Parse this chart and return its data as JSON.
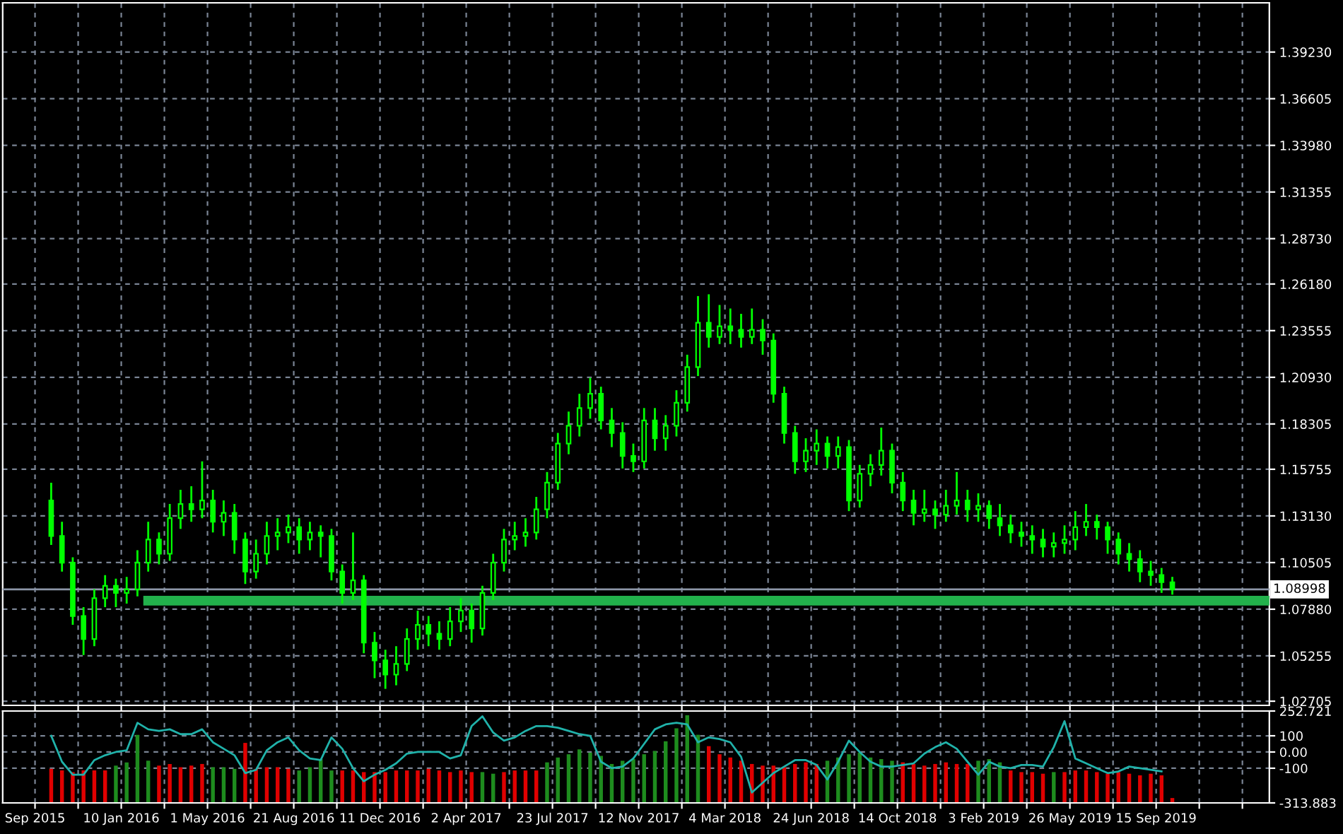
{
  "chart_data": [
    {
      "type": "candlestick",
      "color": "#00ff00",
      "grid": true,
      "tick_labels": "y",
      "xlim": [
        "2015-08-09",
        "2020-02-09"
      ],
      "ylim": [
        1.0247,
        1.42
      ],
      "xticks": [
        {
          "value": "2015-09-20",
          "label": null
        },
        {
          "value": "2015-11-15",
          "label": null
        },
        {
          "value": "2016-01-10",
          "label": null
        },
        {
          "value": "2016-03-06",
          "label": null
        },
        {
          "value": "2016-05-01",
          "label": null
        },
        {
          "value": "2016-06-26",
          "label": null
        },
        {
          "value": "2016-08-21",
          "label": null
        },
        {
          "value": "2016-10-16",
          "label": null
        },
        {
          "value": "2016-12-11",
          "label": null
        },
        {
          "value": "2017-02-05",
          "label": null
        },
        {
          "value": "2017-04-02",
          "label": null
        },
        {
          "value": "2017-05-28",
          "label": null
        },
        {
          "value": "2017-07-23",
          "label": null
        },
        {
          "value": "2017-09-17",
          "label": null
        },
        {
          "value": "2017-11-12",
          "label": null
        },
        {
          "value": "2018-01-07",
          "label": null
        },
        {
          "value": "2018-03-04",
          "label": null
        },
        {
          "value": "2018-04-29",
          "label": null
        },
        {
          "value": "2018-06-24",
          "label": null
        },
        {
          "value": "2018-08-19",
          "label": null
        },
        {
          "value": "2018-10-14",
          "label": null
        },
        {
          "value": "2018-12-09",
          "label": null
        },
        {
          "value": "2019-02-03",
          "label": null
        },
        {
          "value": "2019-03-31",
          "label": null
        },
        {
          "value": "2019-05-26",
          "label": null
        },
        {
          "value": "2019-07-21",
          "label": null
        },
        {
          "value": "2019-09-15",
          "label": null
        },
        {
          "value": "2019-11-10",
          "label": null
        },
        {
          "value": "2020-01-05",
          "label": null
        }
      ],
      "yticks": [
        {
          "value": 1.3923,
          "label": "1.39230"
        },
        {
          "value": 1.36605,
          "label": "1.36605"
        },
        {
          "value": 1.3398,
          "label": "1.33980"
        },
        {
          "value": 1.31355,
          "label": "1.31355"
        },
        {
          "value": 1.2873,
          "label": "1.28730"
        },
        {
          "value": 1.2618,
          "label": "1.26180"
        },
        {
          "value": 1.23555,
          "label": "1.23555"
        },
        {
          "value": 1.2093,
          "label": "1.20930"
        },
        {
          "value": 1.18305,
          "label": "1.18305"
        },
        {
          "value": 1.15755,
          "label": "1.15755"
        },
        {
          "value": 1.1313,
          "label": "1.13130"
        },
        {
          "value": 1.10505,
          "label": "1.10505"
        },
        {
          "value": 1.0788,
          "label": "1.07880"
        },
        {
          "value": 1.05255,
          "label": "1.05255"
        },
        {
          "value": 1.02705,
          "label": "1.02705"
        }
      ],
      "ref_lines": [
        {
          "axis": "y",
          "value": 1.08998,
          "label": "1.08998",
          "color": "#8c96a8"
        }
      ],
      "x": [
        "2015-10-11",
        "2015-10-25",
        "2015-11-08",
        "2015-11-22",
        "2015-12-06",
        "2015-12-20",
        "2016-01-03",
        "2016-01-17",
        "2016-01-31",
        "2016-02-14",
        "2016-02-28",
        "2016-03-13",
        "2016-03-27",
        "2016-04-10",
        "2016-04-24",
        "2016-05-08",
        "2016-05-22",
        "2016-06-05",
        "2016-06-19",
        "2016-07-03",
        "2016-07-17",
        "2016-07-31",
        "2016-08-14",
        "2016-08-28",
        "2016-09-11",
        "2016-09-25",
        "2016-10-09",
        "2016-10-23",
        "2016-11-06",
        "2016-11-20",
        "2016-12-04",
        "2016-12-18",
        "2017-01-01",
        "2017-01-15",
        "2017-01-29",
        "2017-02-12",
        "2017-02-26",
        "2017-03-12",
        "2017-03-26",
        "2017-04-09",
        "2017-04-23",
        "2017-05-07",
        "2017-05-21",
        "2017-06-04",
        "2017-06-18",
        "2017-07-02",
        "2017-07-16",
        "2017-07-30",
        "2017-08-13",
        "2017-08-27",
        "2017-09-10",
        "2017-09-24",
        "2017-10-08",
        "2017-10-22",
        "2017-11-05",
        "2017-11-19",
        "2017-12-03",
        "2017-12-17",
        "2017-12-31",
        "2018-01-14",
        "2018-01-28",
        "2018-02-11",
        "2018-02-25",
        "2018-03-11",
        "2018-03-25",
        "2018-04-08",
        "2018-04-22",
        "2018-05-06",
        "2018-05-20",
        "2018-06-03",
        "2018-06-17",
        "2018-07-01",
        "2018-07-15",
        "2018-07-29",
        "2018-08-12",
        "2018-08-26",
        "2018-09-09",
        "2018-09-23",
        "2018-10-07",
        "2018-10-21",
        "2018-11-04",
        "2018-11-18",
        "2018-12-02",
        "2018-12-16",
        "2018-12-30",
        "2019-01-13",
        "2019-01-27",
        "2019-02-10",
        "2019-02-24",
        "2019-03-10",
        "2019-03-24",
        "2019-04-07",
        "2019-04-21",
        "2019-05-05",
        "2019-05-19",
        "2019-06-02",
        "2019-06-16",
        "2019-06-30",
        "2019-07-14",
        "2019-07-28",
        "2019-08-11",
        "2019-08-25",
        "2019-09-08",
        "2019-09-22",
        "2019-10-06"
      ],
      "ohlc": [
        [
          1.14,
          1.15,
          1.115,
          1.12
        ],
        [
          1.12,
          1.128,
          1.1,
          1.105
        ],
        [
          1.105,
          1.108,
          1.07,
          1.075
        ],
        [
          1.075,
          1.08,
          1.053,
          1.062
        ],
        [
          1.062,
          1.09,
          1.058,
          1.085
        ],
        [
          1.085,
          1.098,
          1.08,
          1.092
        ],
        [
          1.092,
          1.096,
          1.08,
          1.088
        ],
        [
          1.088,
          1.097,
          1.082,
          1.09
        ],
        [
          1.09,
          1.112,
          1.086,
          1.105
        ],
        [
          1.105,
          1.128,
          1.1,
          1.118
        ],
        [
          1.118,
          1.122,
          1.104,
          1.11
        ],
        [
          1.11,
          1.138,
          1.106,
          1.13
        ],
        [
          1.13,
          1.146,
          1.124,
          1.138
        ],
        [
          1.138,
          1.148,
          1.128,
          1.135
        ],
        [
          1.135,
          1.162,
          1.13,
          1.14
        ],
        [
          1.14,
          1.146,
          1.122,
          1.128
        ],
        [
          1.128,
          1.14,
          1.12,
          1.133
        ],
        [
          1.133,
          1.138,
          1.11,
          1.118
        ],
        [
          1.118,
          1.122,
          1.093,
          1.1
        ],
        [
          1.1,
          1.118,
          1.096,
          1.11
        ],
        [
          1.11,
          1.128,
          1.104,
          1.12
        ],
        [
          1.12,
          1.13,
          1.112,
          1.122
        ],
        [
          1.122,
          1.132,
          1.116,
          1.125
        ],
        [
          1.125,
          1.13,
          1.11,
          1.118
        ],
        [
          1.118,
          1.128,
          1.112,
          1.122
        ],
        [
          1.122,
          1.126,
          1.108,
          1.12
        ],
        [
          1.12,
          1.124,
          1.095,
          1.1
        ],
        [
          1.1,
          1.104,
          1.082,
          1.088
        ],
        [
          1.088,
          1.122,
          1.084,
          1.095
        ],
        [
          1.095,
          1.098,
          1.054,
          1.06
        ],
        [
          1.06,
          1.066,
          1.04,
          1.05
        ],
        [
          1.05,
          1.056,
          1.034,
          1.042
        ],
        [
          1.042,
          1.058,
          1.036,
          1.048
        ],
        [
          1.048,
          1.068,
          1.044,
          1.062
        ],
        [
          1.062,
          1.078,
          1.056,
          1.07
        ],
        [
          1.07,
          1.075,
          1.058,
          1.065
        ],
        [
          1.065,
          1.072,
          1.056,
          1.062
        ],
        [
          1.062,
          1.08,
          1.058,
          1.072
        ],
        [
          1.072,
          1.085,
          1.066,
          1.078
        ],
        [
          1.078,
          1.082,
          1.06,
          1.068
        ],
        [
          1.068,
          1.092,
          1.064,
          1.088
        ],
        [
          1.088,
          1.11,
          1.084,
          1.105
        ],
        [
          1.105,
          1.124,
          1.1,
          1.118
        ],
        [
          1.118,
          1.128,
          1.112,
          1.12
        ],
        [
          1.12,
          1.13,
          1.114,
          1.122
        ],
        [
          1.122,
          1.142,
          1.118,
          1.135
        ],
        [
          1.135,
          1.156,
          1.13,
          1.15
        ],
        [
          1.15,
          1.178,
          1.146,
          1.172
        ],
        [
          1.172,
          1.19,
          1.166,
          1.182
        ],
        [
          1.182,
          1.2,
          1.176,
          1.192
        ],
        [
          1.192,
          1.209,
          1.186,
          1.2
        ],
        [
          1.2,
          1.204,
          1.18,
          1.185
        ],
        [
          1.185,
          1.192,
          1.17,
          1.178
        ],
        [
          1.178,
          1.184,
          1.158,
          1.165
        ],
        [
          1.165,
          1.172,
          1.156,
          1.162
        ],
        [
          1.162,
          1.192,
          1.158,
          1.185
        ],
        [
          1.185,
          1.192,
          1.168,
          1.175
        ],
        [
          1.175,
          1.188,
          1.168,
          1.182
        ],
        [
          1.182,
          1.202,
          1.176,
          1.195
        ],
        [
          1.195,
          1.222,
          1.19,
          1.215
        ],
        [
          1.215,
          1.255,
          1.21,
          1.24
        ],
        [
          1.24,
          1.256,
          1.226,
          1.232
        ],
        [
          1.232,
          1.25,
          1.228,
          1.238
        ],
        [
          1.238,
          1.248,
          1.228,
          1.236
        ],
        [
          1.236,
          1.245,
          1.226,
          1.232
        ],
        [
          1.232,
          1.248,
          1.228,
          1.236
        ],
        [
          1.236,
          1.242,
          1.222,
          1.23
        ],
        [
          1.23,
          1.234,
          1.195,
          1.2
        ],
        [
          1.2,
          1.204,
          1.172,
          1.178
        ],
        [
          1.178,
          1.182,
          1.155,
          1.162
        ],
        [
          1.162,
          1.175,
          1.156,
          1.168
        ],
        [
          1.168,
          1.18,
          1.16,
          1.172
        ],
        [
          1.172,
          1.176,
          1.158,
          1.165
        ],
        [
          1.165,
          1.176,
          1.158,
          1.17
        ],
        [
          1.17,
          1.174,
          1.134,
          1.14
        ],
        [
          1.14,
          1.16,
          1.136,
          1.155
        ],
        [
          1.155,
          1.166,
          1.148,
          1.16
        ],
        [
          1.16,
          1.181,
          1.154,
          1.168
        ],
        [
          1.168,
          1.172,
          1.144,
          1.15
        ],
        [
          1.15,
          1.156,
          1.134,
          1.14
        ],
        [
          1.14,
          1.146,
          1.126,
          1.133
        ],
        [
          1.133,
          1.146,
          1.128,
          1.135
        ],
        [
          1.135,
          1.14,
          1.124,
          1.132
        ],
        [
          1.132,
          1.146,
          1.128,
          1.137
        ],
        [
          1.137,
          1.156,
          1.132,
          1.14
        ],
        [
          1.14,
          1.146,
          1.128,
          1.135
        ],
        [
          1.135,
          1.144,
          1.128,
          1.137
        ],
        [
          1.137,
          1.14,
          1.124,
          1.13
        ],
        [
          1.13,
          1.138,
          1.12,
          1.126
        ],
        [
          1.126,
          1.132,
          1.116,
          1.122
        ],
        [
          1.122,
          1.128,
          1.114,
          1.12
        ],
        [
          1.12,
          1.126,
          1.11,
          1.118
        ],
        [
          1.118,
          1.124,
          1.108,
          1.114
        ],
        [
          1.114,
          1.122,
          1.108,
          1.116
        ],
        [
          1.116,
          1.126,
          1.11,
          1.118
        ],
        [
          1.118,
          1.134,
          1.112,
          1.125
        ],
        [
          1.125,
          1.138,
          1.12,
          1.128
        ],
        [
          1.128,
          1.132,
          1.118,
          1.125
        ],
        [
          1.125,
          1.128,
          1.11,
          1.118
        ],
        [
          1.118,
          1.122,
          1.104,
          1.11
        ],
        [
          1.11,
          1.116,
          1.1,
          1.107
        ],
        [
          1.107,
          1.112,
          1.094,
          1.1
        ],
        [
          1.1,
          1.106,
          1.092,
          1.098
        ],
        [
          1.098,
          1.102,
          1.088,
          1.094
        ],
        [
          1.094,
          1.097,
          1.087,
          1.09
        ]
      ],
      "series": [
        {
          "type": "line",
          "color": "#22b14c",
          "x": [
            "2016-02-14",
            "2020-02-09"
          ],
          "values": [
            1.0836,
            1.0836
          ]
        }
      ]
    },
    {
      "type": "line",
      "grid": true,
      "xlim": [
        "2015-08-09",
        "2020-02-09"
      ],
      "ylim": [
        -313.883,
        252.721
      ],
      "xticks": [
        {
          "value": "2015-09-20",
          "label": "Sep 2015"
        },
        {
          "value": "2015-11-15",
          "label": null
        },
        {
          "value": "2016-01-10",
          "label": "10 Jan 2016"
        },
        {
          "value": "2016-03-06",
          "label": null
        },
        {
          "value": "2016-05-01",
          "label": "1 May 2016"
        },
        {
          "value": "2016-06-26",
          "label": null
        },
        {
          "value": "2016-08-21",
          "label": "21 Aug 2016"
        },
        {
          "value": "2016-10-16",
          "label": null
        },
        {
          "value": "2016-12-11",
          "label": "11 Dec 2016"
        },
        {
          "value": "2017-02-05",
          "label": null
        },
        {
          "value": "2017-04-02",
          "label": "2 Apr 2017"
        },
        {
          "value": "2017-05-28",
          "label": null
        },
        {
          "value": "2017-07-23",
          "label": "23 Jul 2017"
        },
        {
          "value": "2017-09-17",
          "label": null
        },
        {
          "value": "2017-11-12",
          "label": "12 Nov 2017"
        },
        {
          "value": "2018-01-07",
          "label": null
        },
        {
          "value": "2018-03-04",
          "label": "4 Mar 2018"
        },
        {
          "value": "2018-04-29",
          "label": null
        },
        {
          "value": "2018-06-24",
          "label": "24 Jun 2018"
        },
        {
          "value": "2018-08-19",
          "label": null
        },
        {
          "value": "2018-10-14",
          "label": "14 Oct 2018"
        },
        {
          "value": "2018-12-09",
          "label": null
        },
        {
          "value": "2019-02-03",
          "label": "3 Feb 2019"
        },
        {
          "value": "2019-03-31",
          "label": null
        },
        {
          "value": "2019-05-26",
          "label": "26 May 2019"
        },
        {
          "value": "2019-07-21",
          "label": null
        },
        {
          "value": "2019-09-15",
          "label": "15 Sep 2019"
        },
        {
          "value": "2019-11-10",
          "label": null
        },
        {
          "value": "2020-01-05",
          "label": null
        }
      ],
      "yticks": [
        252.721,
        100,
        {
          "value": 0,
          "label": "0.00"
        },
        -100,
        -313.883
      ],
      "x": [
        "2015-10-11",
        "2015-10-25",
        "2015-11-08",
        "2015-11-22",
        "2015-12-06",
        "2015-12-20",
        "2016-01-03",
        "2016-01-17",
        "2016-01-31",
        "2016-02-14",
        "2016-02-28",
        "2016-03-13",
        "2016-03-27",
        "2016-04-10",
        "2016-04-24",
        "2016-05-08",
        "2016-05-22",
        "2016-06-05",
        "2016-06-19",
        "2016-07-03",
        "2016-07-17",
        "2016-07-31",
        "2016-08-14",
        "2016-08-28",
        "2016-09-11",
        "2016-09-25",
        "2016-10-09",
        "2016-10-23",
        "2016-11-06",
        "2016-11-20",
        "2016-12-04",
        "2016-12-18",
        "2017-01-01",
        "2017-01-15",
        "2017-01-29",
        "2017-02-12",
        "2017-02-26",
        "2017-03-12",
        "2017-03-26",
        "2017-04-09",
        "2017-04-23",
        "2017-05-07",
        "2017-05-21",
        "2017-06-04",
        "2017-06-18",
        "2017-07-02",
        "2017-07-16",
        "2017-07-30",
        "2017-08-13",
        "2017-08-27",
        "2017-09-10",
        "2017-09-24",
        "2017-10-08",
        "2017-10-22",
        "2017-11-05",
        "2017-11-19",
        "2017-12-03",
        "2017-12-17",
        "2017-12-31",
        "2018-01-14",
        "2018-01-28",
        "2018-02-11",
        "2018-02-25",
        "2018-03-11",
        "2018-03-25",
        "2018-04-08",
        "2018-04-22",
        "2018-05-06",
        "2018-05-20",
        "2018-06-03",
        "2018-06-17",
        "2018-07-01",
        "2018-07-15",
        "2018-07-29",
        "2018-08-12",
        "2018-08-26",
        "2018-09-09",
        "2018-09-23",
        "2018-10-07",
        "2018-10-21",
        "2018-11-04",
        "2018-11-18",
        "2018-12-02",
        "2018-12-16",
        "2018-12-30",
        "2019-01-13",
        "2019-01-27",
        "2019-02-10",
        "2019-02-24",
        "2019-03-10",
        "2019-03-24",
        "2019-04-07",
        "2019-04-21",
        "2019-05-05",
        "2019-05-19",
        "2019-06-02",
        "2019-06-16",
        "2019-06-30",
        "2019-07-14",
        "2019-07-28",
        "2019-08-11",
        "2019-08-25",
        "2019-09-08",
        "2019-09-22",
        "2019-10-06"
      ],
      "series": [
        {
          "type": "bar",
          "values": [
            210,
            200,
            190,
            200,
            200,
            200,
            230,
            250,
            420,
            260,
            230,
            240,
            220,
            230,
            240,
            220,
            220,
            210,
            370,
            210,
            220,
            220,
            210,
            200,
            220,
            270,
            200,
            200,
            200,
            190,
            190,
            190,
            200,
            200,
            200,
            210,
            200,
            190,
            200,
            190,
            190,
            180,
            190,
            200,
            200,
            200,
            250,
            280,
            300,
            330,
            310,
            290,
            240,
            260,
            270,
            300,
            320,
            380,
            460,
            540,
            420,
            350,
            300,
            280,
            260,
            240,
            230,
            230,
            220,
            240,
            250,
            240,
            260,
            280,
            300,
            310,
            280,
            270,
            260,
            250,
            240,
            230,
            240,
            250,
            240,
            240,
            260,
            270,
            250,
            200,
            190,
            190,
            180,
            190,
            190,
            200,
            200,
            190,
            180,
            190,
            180,
            170,
            180,
            170,
            30
          ],
          "base": [
            -313.883,
            -313.883,
            -313.883,
            -313.883,
            -313.883,
            -313.883,
            -313.883,
            -313.883,
            -313.883,
            -313.883,
            -313.883,
            -313.883,
            -313.883,
            -313.883,
            -313.883,
            -313.883,
            -313.883,
            -313.883,
            -313.883,
            -313.883,
            -313.883,
            -313.883,
            -313.883,
            -313.883,
            -313.883,
            -313.883,
            -313.883,
            -313.883,
            -313.883,
            -313.883,
            -313.883,
            -313.883,
            -313.883,
            -313.883,
            -313.883,
            -313.883,
            -313.883,
            -313.883,
            -313.883,
            -313.883,
            -313.883,
            -313.883,
            -313.883,
            -313.883,
            -313.883,
            -313.883,
            -313.883,
            -313.883,
            -313.883,
            -313.883,
            -313.883,
            -313.883,
            -313.883,
            -313.883,
            -313.883,
            -313.883,
            -313.883,
            -313.883,
            -313.883,
            -313.883,
            -313.883,
            -313.883,
            -313.883,
            -313.883,
            -313.883,
            -313.883,
            -313.883,
            -313.883,
            -313.883,
            -313.883,
            -313.883,
            -313.883,
            -313.883,
            -313.883,
            -313.883,
            -313.883,
            -313.883,
            -313.883,
            -313.883,
            -313.883,
            -313.883,
            -313.883,
            -313.883,
            -313.883,
            -313.883,
            -313.883,
            -313.883,
            -313.883,
            -313.883,
            -313.883,
            -313.883,
            -313.883,
            -313.883,
            -313.883,
            -313.883,
            -313.883,
            -313.883,
            -313.883,
            -313.883,
            -313.883,
            -313.883,
            -313.883,
            -313.883,
            -313.883,
            -313.883
          ],
          "colors": [
            "#e00000",
            "#e00000",
            "#e00000",
            "#e00000",
            "#e00000",
            "#e00000",
            "#1e8c1e",
            "#1e8c1e",
            "#1e8c1e",
            "#1e8c1e",
            "#e00000",
            "#e00000",
            "#e00000",
            "#e00000",
            "#e00000",
            "#1e8c1e",
            "#1e8c1e",
            "#1e8c1e",
            "#e00000",
            "#e00000",
            "#e00000",
            "#e00000",
            "#e00000",
            "#1e8c1e",
            "#1e8c1e",
            "#1e8c1e",
            "#1e8c1e",
            "#e00000",
            "#e00000",
            "#e00000",
            "#e00000",
            "#e00000",
            "#e00000",
            "#e00000",
            "#e00000",
            "#e00000",
            "#e00000",
            "#e00000",
            "#e00000",
            "#e00000",
            "#1e8c1e",
            "#1e8c1e",
            "#e00000",
            "#e00000",
            "#e00000",
            "#e00000",
            "#1e8c1e",
            "#1e8c1e",
            "#1e8c1e",
            "#1e8c1e",
            "#1e8c1e",
            "#1e8c1e",
            "#1e8c1e",
            "#1e8c1e",
            "#1e8c1e",
            "#1e8c1e",
            "#1e8c1e",
            "#1e8c1e",
            "#1e8c1e",
            "#1e8c1e",
            "#1e8c1e",
            "#e00000",
            "#e00000",
            "#e00000",
            "#e00000",
            "#e00000",
            "#e00000",
            "#e00000",
            "#e00000",
            "#e00000",
            "#e00000",
            "#e00000",
            "#1e8c1e",
            "#1e8c1e",
            "#1e8c1e",
            "#1e8c1e",
            "#1e8c1e",
            "#1e8c1e",
            "#1e8c1e",
            "#e00000",
            "#e00000",
            "#e00000",
            "#e00000",
            "#e00000",
            "#e00000",
            "#e00000",
            "#1e8c1e",
            "#1e8c1e",
            "#1e8c1e",
            "#e00000",
            "#e00000",
            "#e00000",
            "#e00000",
            "#1e8c1e",
            "#e00000",
            "#e00000",
            "#e00000",
            "#e00000",
            "#e00000",
            "#e00000",
            "#e00000",
            "#e00000",
            "#e00000",
            "#e00000",
            "#e00000"
          ]
        },
        {
          "type": "line",
          "color": "#20b2aa",
          "values": [
            100,
            -60,
            -140,
            -140,
            -50,
            -20,
            0,
            10,
            180,
            140,
            130,
            140,
            110,
            110,
            140,
            60,
            20,
            -20,
            -130,
            -110,
            10,
            60,
            90,
            10,
            -40,
            -50,
            90,
            20,
            -100,
            -180,
            -140,
            -110,
            -70,
            -10,
            0,
            0,
            0,
            -40,
            -20,
            160,
            220,
            120,
            70,
            90,
            130,
            160,
            160,
            150,
            130,
            110,
            100,
            -60,
            -100,
            -90,
            -40,
            50,
            140,
            170,
            180,
            170,
            60,
            90,
            80,
            60,
            -30,
            -250,
            -190,
            -130,
            -90,
            -50,
            -50,
            -80,
            -170,
            -60,
            70,
            0,
            -60,
            -90,
            -90,
            -80,
            -70,
            -10,
            30,
            60,
            20,
            -60,
            -140,
            -60,
            -90,
            -100,
            -80,
            -80,
            -90,
            30,
            190,
            -40,
            -70,
            -100,
            -130,
            -120,
            -90,
            -100,
            -110,
            -120,
            null
          ]
        }
      ]
    }
  ]
}
